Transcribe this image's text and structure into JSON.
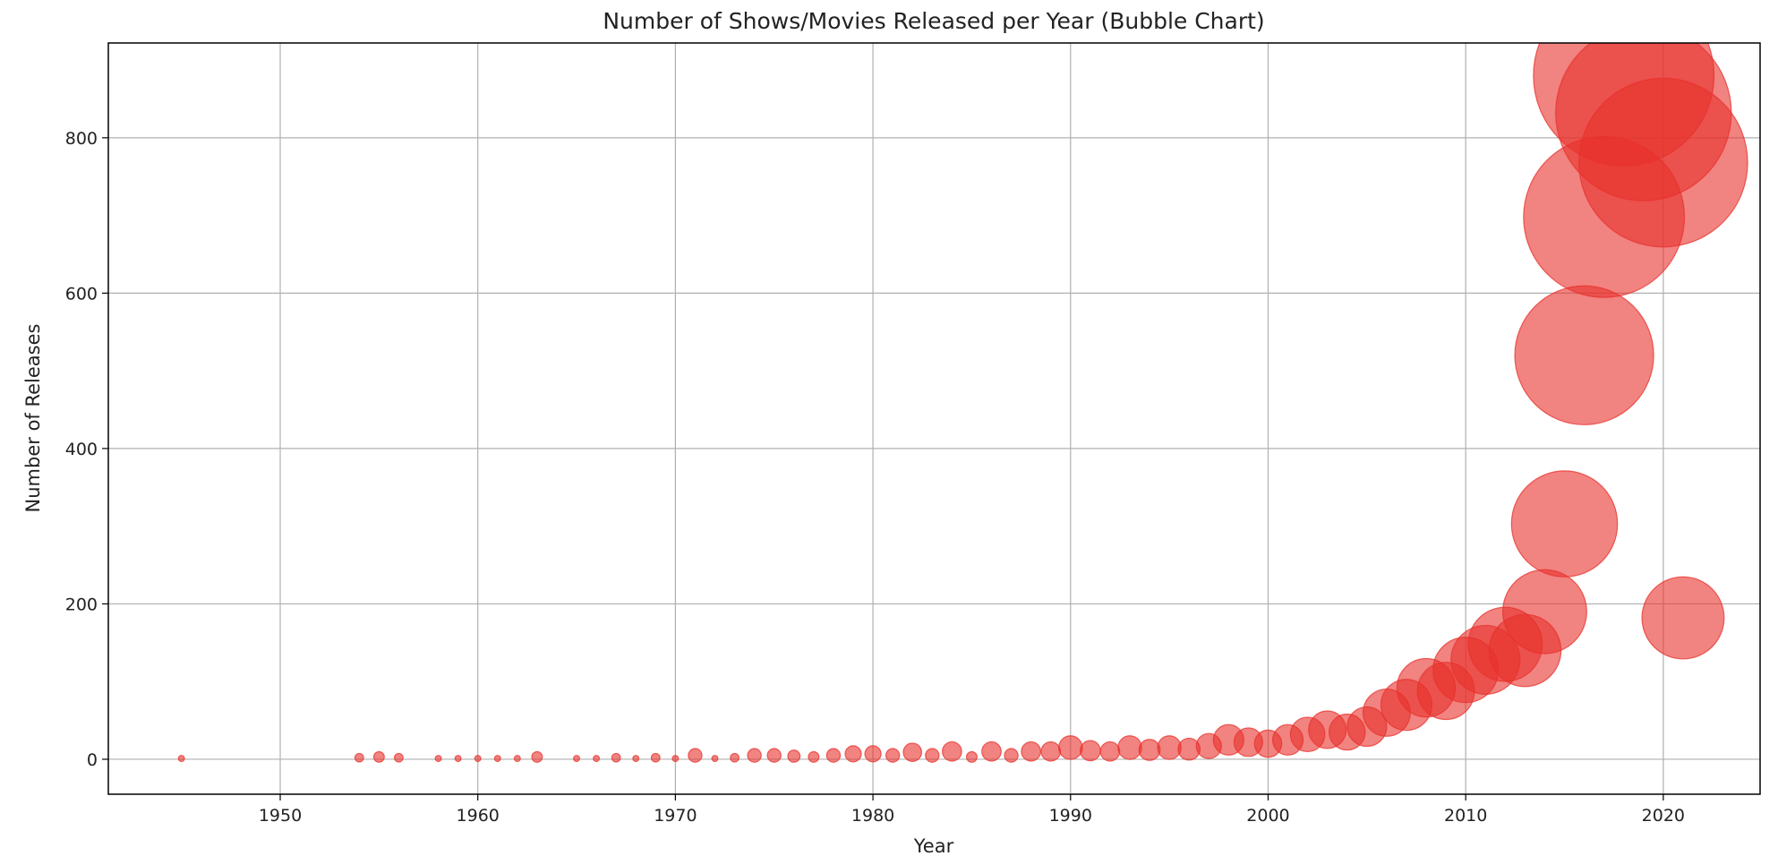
{
  "chart_data": {
    "type": "scatter",
    "subtype": "bubble",
    "title": "Number of Shows/Movies Released per Year (Bubble Chart)",
    "xlabel": "Year",
    "ylabel": "Number of Releases",
    "xlim": [
      1941.3,
      2024.9
    ],
    "ylim": [
      -45,
      922
    ],
    "xticks": [
      1950,
      1960,
      1970,
      1980,
      1990,
      2000,
      2010,
      2020
    ],
    "yticks": [
      0,
      200,
      400,
      600,
      800
    ],
    "grid": true,
    "legend": "none",
    "bubble_size": "proportional to number of releases",
    "color": "#e8312c",
    "opacity": 0.6,
    "points": [
      {
        "x": 1945,
        "y": 1
      },
      {
        "x": 1954,
        "y": 2
      },
      {
        "x": 1955,
        "y": 3
      },
      {
        "x": 1956,
        "y": 2
      },
      {
        "x": 1958,
        "y": 1
      },
      {
        "x": 1959,
        "y": 1
      },
      {
        "x": 1960,
        "y": 1
      },
      {
        "x": 1961,
        "y": 1
      },
      {
        "x": 1962,
        "y": 1
      },
      {
        "x": 1963,
        "y": 3
      },
      {
        "x": 1965,
        "y": 1
      },
      {
        "x": 1966,
        "y": 1
      },
      {
        "x": 1967,
        "y": 2
      },
      {
        "x": 1968,
        "y": 1
      },
      {
        "x": 1969,
        "y": 2
      },
      {
        "x": 1970,
        "y": 1
      },
      {
        "x": 1971,
        "y": 5
      },
      {
        "x": 1972,
        "y": 1
      },
      {
        "x": 1973,
        "y": 2
      },
      {
        "x": 1974,
        "y": 5
      },
      {
        "x": 1975,
        "y": 5
      },
      {
        "x": 1976,
        "y": 4
      },
      {
        "x": 1977,
        "y": 3
      },
      {
        "x": 1978,
        "y": 5
      },
      {
        "x": 1979,
        "y": 7
      },
      {
        "x": 1980,
        "y": 7
      },
      {
        "x": 1981,
        "y": 5
      },
      {
        "x": 1982,
        "y": 9
      },
      {
        "x": 1983,
        "y": 5
      },
      {
        "x": 1984,
        "y": 10
      },
      {
        "x": 1985,
        "y": 3
      },
      {
        "x": 1986,
        "y": 10
      },
      {
        "x": 1987,
        "y": 5
      },
      {
        "x": 1988,
        "y": 10
      },
      {
        "x": 1989,
        "y": 10
      },
      {
        "x": 1990,
        "y": 15
      },
      {
        "x": 1991,
        "y": 11
      },
      {
        "x": 1992,
        "y": 10
      },
      {
        "x": 1993,
        "y": 15
      },
      {
        "x": 1994,
        "y": 12
      },
      {
        "x": 1995,
        "y": 15
      },
      {
        "x": 1996,
        "y": 13
      },
      {
        "x": 1997,
        "y": 17
      },
      {
        "x": 1998,
        "y": 25
      },
      {
        "x": 1999,
        "y": 22
      },
      {
        "x": 2000,
        "y": 20
      },
      {
        "x": 2001,
        "y": 25
      },
      {
        "x": 2002,
        "y": 32
      },
      {
        "x": 2003,
        "y": 38
      },
      {
        "x": 2004,
        "y": 35
      },
      {
        "x": 2005,
        "y": 42
      },
      {
        "x": 2006,
        "y": 60
      },
      {
        "x": 2007,
        "y": 70
      },
      {
        "x": 2008,
        "y": 92
      },
      {
        "x": 2009,
        "y": 88
      },
      {
        "x": 2010,
        "y": 115
      },
      {
        "x": 2011,
        "y": 128
      },
      {
        "x": 2012,
        "y": 148
      },
      {
        "x": 2013,
        "y": 140
      },
      {
        "x": 2014,
        "y": 190
      },
      {
        "x": 2015,
        "y": 303
      },
      {
        "x": 2016,
        "y": 520
      },
      {
        "x": 2017,
        "y": 698
      },
      {
        "x": 2018,
        "y": 880
      },
      {
        "x": 2019,
        "y": 832
      },
      {
        "x": 2020,
        "y": 768
      },
      {
        "x": 2021,
        "y": 182
      }
    ]
  }
}
